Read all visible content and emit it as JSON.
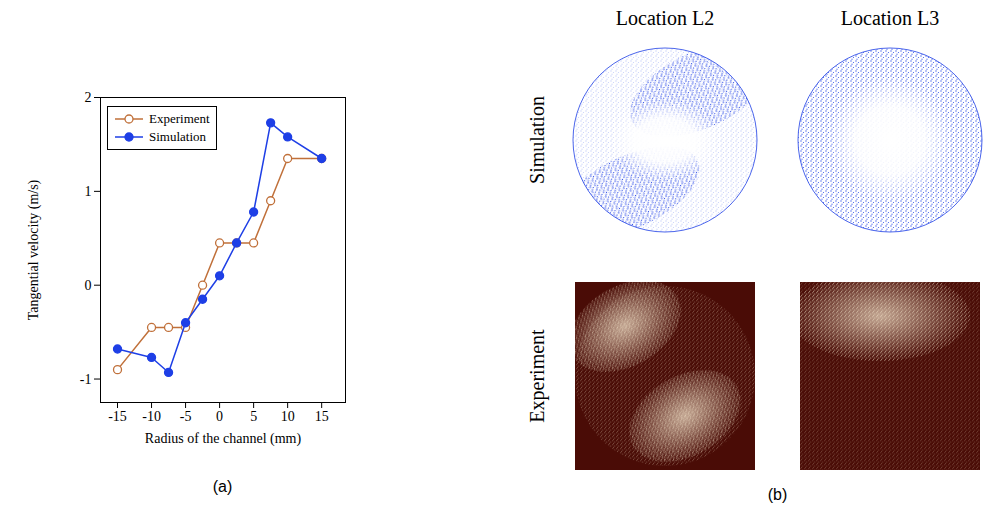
{
  "chart_data": [
    {
      "type": "line",
      "title": "(a)",
      "x_label": "Radius of the channel (mm)",
      "y_label": "Tangential velocity (m/s)",
      "x": [
        -15,
        -10,
        -7.5,
        -5,
        -2.5,
        0,
        2.5,
        5,
        7.5,
        10,
        15
      ],
      "series": [
        {
          "name": "Experiment",
          "color": "#c0703a",
          "marker": "open_circle",
          "values": [
            -0.9,
            -0.45,
            -0.45,
            -0.45,
            0.0,
            0.45,
            0.45,
            0.45,
            0.9,
            1.35,
            1.35
          ]
        },
        {
          "name": "Simulation",
          "color": "#1e3fe6",
          "marker": "filled_circle",
          "values": [
            -0.68,
            -0.77,
            -0.93,
            -0.4,
            -0.15,
            0.1,
            0.45,
            0.78,
            1.73,
            1.58,
            1.35
          ]
        }
      ],
      "xlim": [
        -17.5,
        18.5
      ],
      "ylim": [
        -1.25,
        2
      ],
      "xticks": [
        -15,
        -10,
        -5,
        0,
        5,
        10,
        15
      ],
      "yticks": [
        -1,
        0,
        1,
        2
      ],
      "legend": "upper left"
    },
    {
      "type": "image_grid",
      "title": "(b)",
      "columns": [
        "Location L2",
        "Location L3"
      ],
      "rows": [
        "Simulation",
        "Experiment"
      ]
    }
  ]
}
